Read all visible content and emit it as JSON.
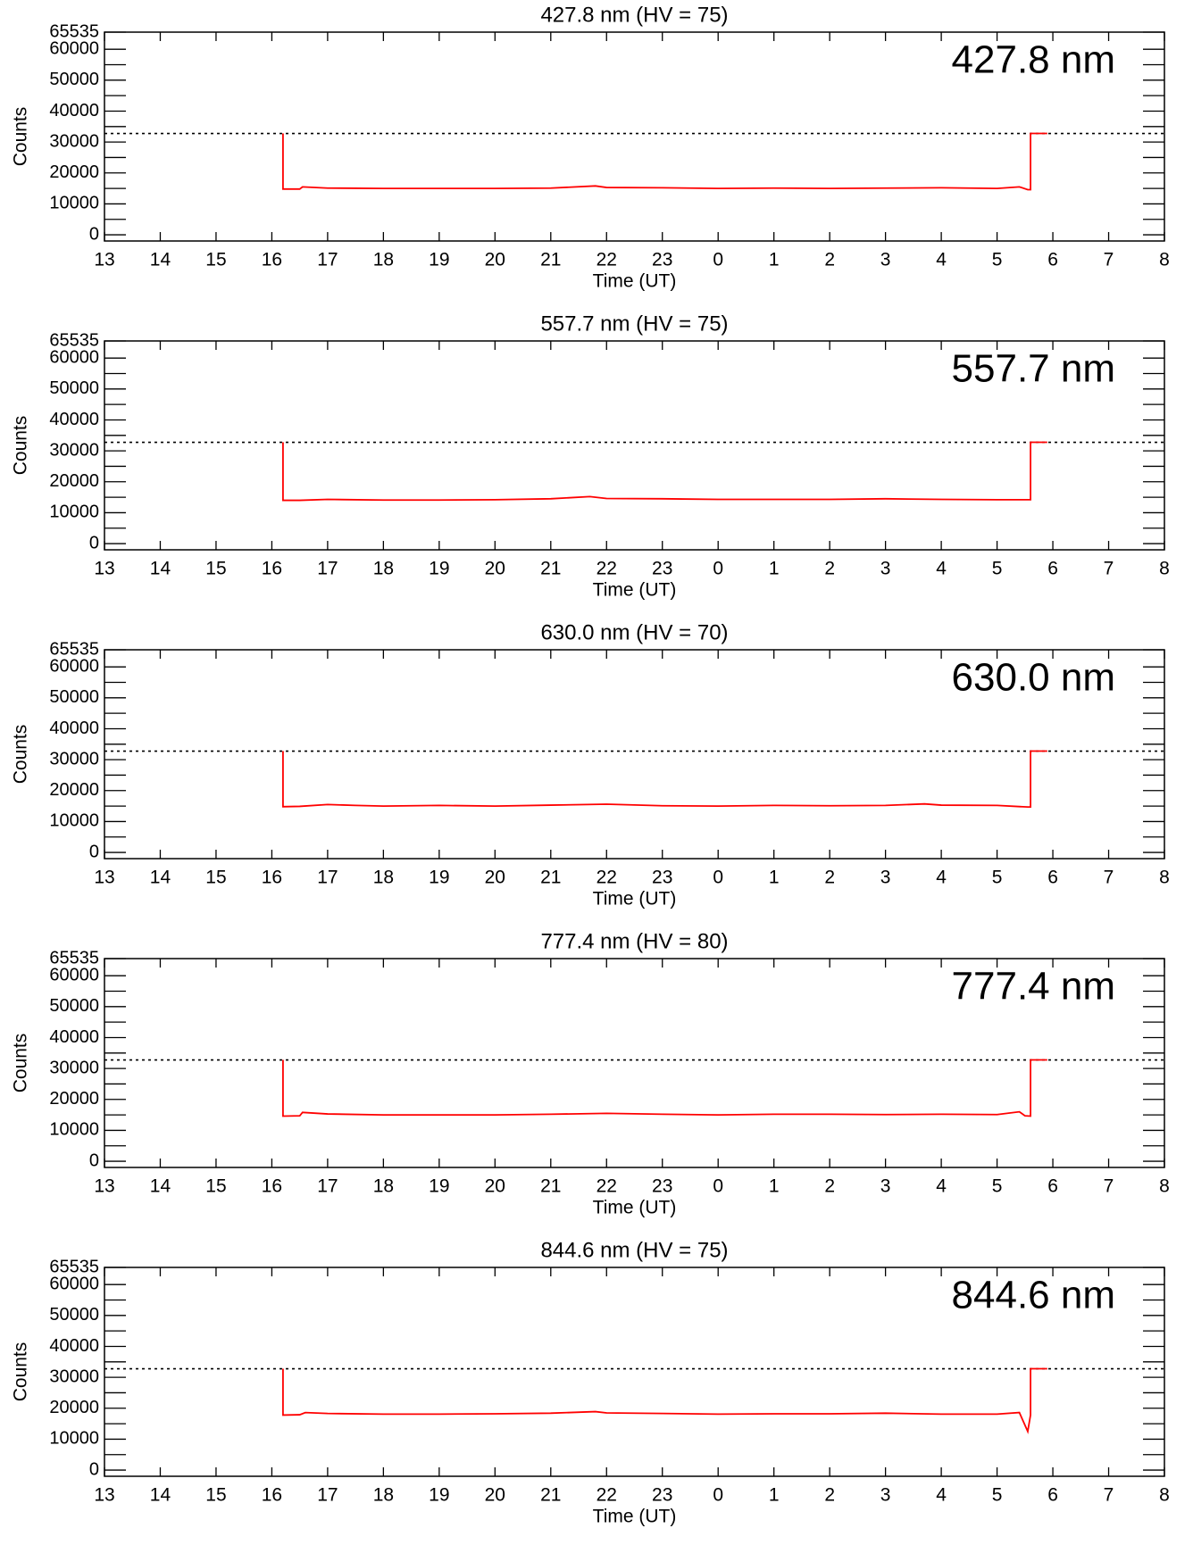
{
  "chart_data": [
    {
      "type": "line",
      "title": "427.8 nm (HV = 75)",
      "annotation": "427.8 nm",
      "xlabel": "Time (UT)",
      "ylabel": "Counts",
      "color": "#ff0000",
      "xlim": [
        13,
        32
      ],
      "ylim": [
        -2000,
        65535
      ],
      "xticks": [
        13,
        14,
        15,
        16,
        17,
        18,
        19,
        20,
        21,
        22,
        23,
        {
          "value": 24,
          "label": "0"
        },
        {
          "value": 25,
          "label": "1"
        },
        {
          "value": 26,
          "label": "2"
        },
        {
          "value": 27,
          "label": "3"
        },
        {
          "value": 28,
          "label": "4"
        },
        {
          "value": 29,
          "label": "5"
        },
        {
          "value": 30,
          "label": "6"
        },
        {
          "value": 31,
          "label": "7"
        },
        {
          "value": 32,
          "label": "8"
        }
      ],
      "yticks": [
        0,
        10000,
        20000,
        30000,
        40000,
        50000,
        60000,
        65535
      ],
      "reference_line": 32768,
      "x": [
        16.2,
        16.2,
        16.5,
        16.55,
        17,
        18,
        19,
        20,
        21,
        21.8,
        22,
        23,
        24,
        25,
        26,
        27,
        28,
        29,
        29.4,
        29.55,
        29.6,
        29.6,
        29.9
      ],
      "values": [
        32768,
        14800,
        14800,
        15500,
        15100,
        15000,
        15000,
        15000,
        15100,
        15800,
        15300,
        15200,
        15000,
        15100,
        15000,
        15100,
        15200,
        15000,
        15500,
        14600,
        14600,
        32768,
        32768
      ]
    },
    {
      "type": "line",
      "title": "557.7 nm (HV = 75)",
      "annotation": "557.7 nm",
      "xlabel": "Time (UT)",
      "ylabel": "Counts",
      "color": "#ff0000",
      "xlim": [
        13,
        32
      ],
      "ylim": [
        -2000,
        65535
      ],
      "xticks": [
        13,
        14,
        15,
        16,
        17,
        18,
        19,
        20,
        21,
        22,
        23,
        {
          "value": 24,
          "label": "0"
        },
        {
          "value": 25,
          "label": "1"
        },
        {
          "value": 26,
          "label": "2"
        },
        {
          "value": 27,
          "label": "3"
        },
        {
          "value": 28,
          "label": "4"
        },
        {
          "value": 29,
          "label": "5"
        },
        {
          "value": 30,
          "label": "6"
        },
        {
          "value": 31,
          "label": "7"
        },
        {
          "value": 32,
          "label": "8"
        }
      ],
      "yticks": [
        0,
        10000,
        20000,
        30000,
        40000,
        50000,
        60000,
        65535
      ],
      "reference_line": 32768,
      "x": [
        16.2,
        16.2,
        16.5,
        17,
        18,
        19,
        20,
        21,
        21.7,
        22,
        23,
        24,
        25,
        26,
        27,
        28,
        29,
        29.6,
        29.6,
        29.9
      ],
      "values": [
        32768,
        14000,
        14000,
        14300,
        14100,
        14100,
        14200,
        14500,
        15200,
        14600,
        14500,
        14300,
        14300,
        14300,
        14500,
        14300,
        14200,
        14200,
        32768,
        32768
      ]
    },
    {
      "type": "line",
      "title": "630.0 nm (HV = 70)",
      "annotation": "630.0 nm",
      "xlabel": "Time (UT)",
      "ylabel": "Counts",
      "color": "#ff0000",
      "xlim": [
        13,
        32
      ],
      "ylim": [
        -2000,
        65535
      ],
      "xticks": [
        13,
        14,
        15,
        16,
        17,
        18,
        19,
        20,
        21,
        22,
        23,
        {
          "value": 24,
          "label": "0"
        },
        {
          "value": 25,
          "label": "1"
        },
        {
          "value": 26,
          "label": "2"
        },
        {
          "value": 27,
          "label": "3"
        },
        {
          "value": 28,
          "label": "4"
        },
        {
          "value": 29,
          "label": "5"
        },
        {
          "value": 30,
          "label": "6"
        },
        {
          "value": 31,
          "label": "7"
        },
        {
          "value": 32,
          "label": "8"
        }
      ],
      "yticks": [
        0,
        10000,
        20000,
        30000,
        40000,
        50000,
        60000,
        65535
      ],
      "reference_line": 32768,
      "x": [
        16.2,
        16.2,
        16.5,
        17,
        17.5,
        18,
        19,
        20,
        21,
        22,
        23,
        24,
        25,
        26,
        27,
        27.7,
        28,
        29,
        29.55,
        29.6,
        29.6,
        29.9
      ],
      "values": [
        32768,
        14800,
        14900,
        15500,
        15200,
        15000,
        15200,
        15000,
        15300,
        15600,
        15100,
        15000,
        15200,
        15100,
        15200,
        15700,
        15300,
        15200,
        14700,
        14700,
        32768,
        32768
      ]
    },
    {
      "type": "line",
      "title": "777.4 nm (HV = 80)",
      "annotation": "777.4 nm",
      "xlabel": "Time (UT)",
      "ylabel": "Counts",
      "color": "#ff0000",
      "xlim": [
        13,
        32
      ],
      "ylim": [
        -2000,
        65535
      ],
      "xticks": [
        13,
        14,
        15,
        16,
        17,
        18,
        19,
        20,
        21,
        22,
        23,
        {
          "value": 24,
          "label": "0"
        },
        {
          "value": 25,
          "label": "1"
        },
        {
          "value": 26,
          "label": "2"
        },
        {
          "value": 27,
          "label": "3"
        },
        {
          "value": 28,
          "label": "4"
        },
        {
          "value": 29,
          "label": "5"
        },
        {
          "value": 30,
          "label": "6"
        },
        {
          "value": 31,
          "label": "7"
        },
        {
          "value": 32,
          "label": "8"
        }
      ],
      "yticks": [
        0,
        10000,
        20000,
        30000,
        40000,
        50000,
        60000,
        65535
      ],
      "reference_line": 32768,
      "x": [
        16.2,
        16.2,
        16.5,
        16.55,
        17,
        18,
        19,
        20,
        21,
        22,
        23,
        24,
        25,
        26,
        27,
        28,
        29,
        29.4,
        29.5,
        29.6,
        29.6,
        29.9
      ],
      "values": [
        32768,
        14600,
        14700,
        15800,
        15300,
        15000,
        15000,
        15000,
        15200,
        15500,
        15200,
        15000,
        15200,
        15200,
        15100,
        15200,
        15100,
        16000,
        14700,
        14600,
        32768,
        32768
      ]
    },
    {
      "type": "line",
      "title": "844.6 nm (HV = 75)",
      "annotation": "844.6 nm",
      "xlabel": "Time (UT)",
      "ylabel": "Counts",
      "color": "#ff0000",
      "xlim": [
        13,
        32
      ],
      "ylim": [
        -2000,
        65535
      ],
      "xticks": [
        13,
        14,
        15,
        16,
        17,
        18,
        19,
        20,
        21,
        22,
        23,
        {
          "value": 24,
          "label": "0"
        },
        {
          "value": 25,
          "label": "1"
        },
        {
          "value": 26,
          "label": "2"
        },
        {
          "value": 27,
          "label": "3"
        },
        {
          "value": 28,
          "label": "4"
        },
        {
          "value": 29,
          "label": "5"
        },
        {
          "value": 30,
          "label": "6"
        },
        {
          "value": 31,
          "label": "7"
        },
        {
          "value": 32,
          "label": "8"
        }
      ],
      "yticks": [
        0,
        10000,
        20000,
        30000,
        40000,
        50000,
        60000,
        65535
      ],
      "reference_line": 32768,
      "x": [
        16.2,
        16.2,
        16.5,
        16.6,
        17,
        18,
        19,
        20,
        21,
        21.8,
        22,
        23,
        24,
        25,
        26,
        27,
        28,
        29,
        29.4,
        29.55,
        29.6,
        29.6,
        29.9
      ],
      "values": [
        32768,
        17800,
        17900,
        18600,
        18300,
        18100,
        18100,
        18200,
        18400,
        18900,
        18500,
        18300,
        18100,
        18200,
        18200,
        18400,
        18100,
        18100,
        18600,
        12500,
        17800,
        32768,
        32768
      ]
    }
  ]
}
